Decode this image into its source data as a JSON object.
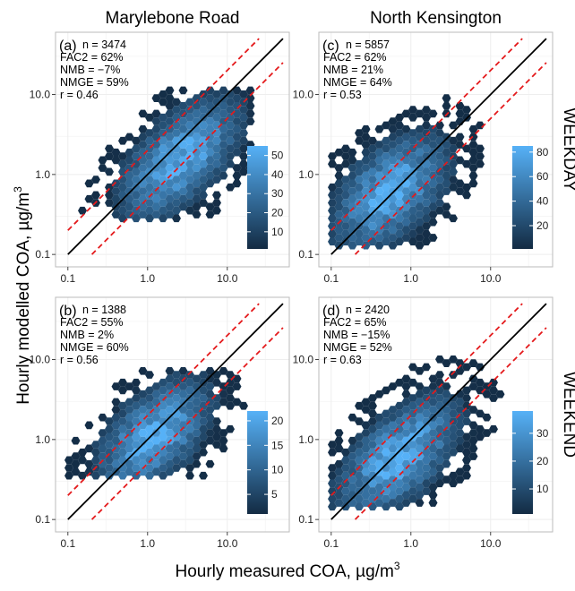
{
  "figure": {
    "columns": [
      "Marylebone Road",
      "North Kensington"
    ],
    "rows": [
      "WEEKDAY",
      "WEEKEND"
    ],
    "xlabel": "Hourly measured COA, µg/m",
    "ylabel": "Hourly modelled COA, µg/m",
    "unit_superscript": "3"
  },
  "colors": {
    "low": "#132b43",
    "high": "#56b1f7",
    "one_to_one_line": "#000000",
    "factor_of_two_lines": "#e41a1c",
    "panel_border": "#bbbbbb",
    "grid": "#eeeeee"
  },
  "chart_data": [
    {
      "type": "heatmap",
      "subtype": "hexbin",
      "panel": "(a)",
      "site": "Marylebone Road",
      "period": "WEEKDAY",
      "x_scale": "log",
      "y_scale": "log",
      "xlim": [
        0.07,
        60
      ],
      "ylim": [
        0.07,
        60
      ],
      "xticks": [
        "0.1",
        "1.0",
        "10.0"
      ],
      "yticks": [
        "0.1",
        "1.0",
        "10.0"
      ],
      "stats": [
        "n = 3474",
        "FAC2 = 62%",
        "NMB = −7%",
        "NMGE = 59%",
        "r = 0.46"
      ],
      "colorbar": {
        "ticks": [
          "10",
          "20",
          "30",
          "40",
          "50"
        ],
        "min": 1,
        "max": 55
      },
      "density": {
        "center_x": 2.6,
        "center_y": 1.6,
        "spread_major": 0.68,
        "spread_minor": 0.34,
        "peak_count": 55,
        "x_range": [
          0.12,
          20
        ],
        "y_range": [
          0.28,
          12
        ]
      },
      "lines": [
        "y = x",
        "y = 2x",
        "y = x/2"
      ]
    },
    {
      "type": "heatmap",
      "subtype": "hexbin",
      "panel": "(c)",
      "site": "North Kensington",
      "period": "WEEKDAY",
      "x_scale": "log",
      "y_scale": "log",
      "xlim": [
        0.07,
        60
      ],
      "ylim": [
        0.07,
        60
      ],
      "xticks": [
        "0.1",
        "1.0",
        "10.0"
      ],
      "yticks": [
        "0.1",
        "1.0",
        "10.0"
      ],
      "stats": [
        "n = 5857",
        "FAC2 = 62%",
        "NMB = 21%",
        "NMGE = 64%",
        "r = 0.53"
      ],
      "colorbar": {
        "ticks": [
          "20",
          "40",
          "60",
          "80"
        ],
        "min": 1,
        "max": 85
      },
      "density": {
        "center_x": 0.55,
        "center_y": 0.6,
        "spread_major": 0.62,
        "spread_minor": 0.36,
        "peak_count": 85,
        "x_range": [
          0.1,
          12
        ],
        "y_range": [
          0.12,
          15
        ]
      },
      "lines": [
        "y = x",
        "y = 2x",
        "y = x/2"
      ]
    },
    {
      "type": "heatmap",
      "subtype": "hexbin",
      "panel": "(b)",
      "site": "Marylebone Road",
      "period": "WEEKEND",
      "x_scale": "log",
      "y_scale": "log",
      "xlim": [
        0.07,
        60
      ],
      "ylim": [
        0.07,
        60
      ],
      "xticks": [
        "0.1",
        "1.0",
        "10.0"
      ],
      "yticks": [
        "0.1",
        "1.0",
        "10.0"
      ],
      "stats": [
        "n = 1388",
        "FAC2 = 55%",
        "NMB = 2%",
        "NMGE = 60%",
        "r = 0.56"
      ],
      "colorbar": {
        "ticks": [
          "5",
          "10",
          "15",
          "20"
        ],
        "min": 1,
        "max": 22
      },
      "density": {
        "center_x": 1.2,
        "center_y": 1.1,
        "spread_major": 0.62,
        "spread_minor": 0.34,
        "peak_count": 22,
        "x_range": [
          0.1,
          20
        ],
        "y_range": [
          0.35,
          8
        ]
      },
      "lines": [
        "y = x",
        "y = 2x",
        "y = x/2"
      ]
    },
    {
      "type": "heatmap",
      "subtype": "hexbin",
      "panel": "(d)",
      "site": "North Kensington",
      "period": "WEEKEND",
      "x_scale": "log",
      "y_scale": "log",
      "xlim": [
        0.07,
        60
      ],
      "ylim": [
        0.07,
        60
      ],
      "xticks": [
        "0.1",
        "1.0",
        "10.0"
      ],
      "yticks": [
        "0.1",
        "1.0",
        "10.0"
      ],
      "stats": [
        "n = 2420",
        "FAC2 = 65%",
        "NMB = −15%",
        "NMGE = 52%",
        "r = 0.63"
      ],
      "colorbar": {
        "ticks": [
          "10",
          "20",
          "30"
        ],
        "min": 1,
        "max": 38
      },
      "density": {
        "center_x": 0.7,
        "center_y": 0.6,
        "spread_major": 0.68,
        "spread_minor": 0.34,
        "peak_count": 38,
        "x_range": [
          0.1,
          15
        ],
        "y_range": [
          0.13,
          14
        ]
      },
      "lines": [
        "y = x",
        "y = 2x",
        "y = x/2"
      ]
    }
  ]
}
